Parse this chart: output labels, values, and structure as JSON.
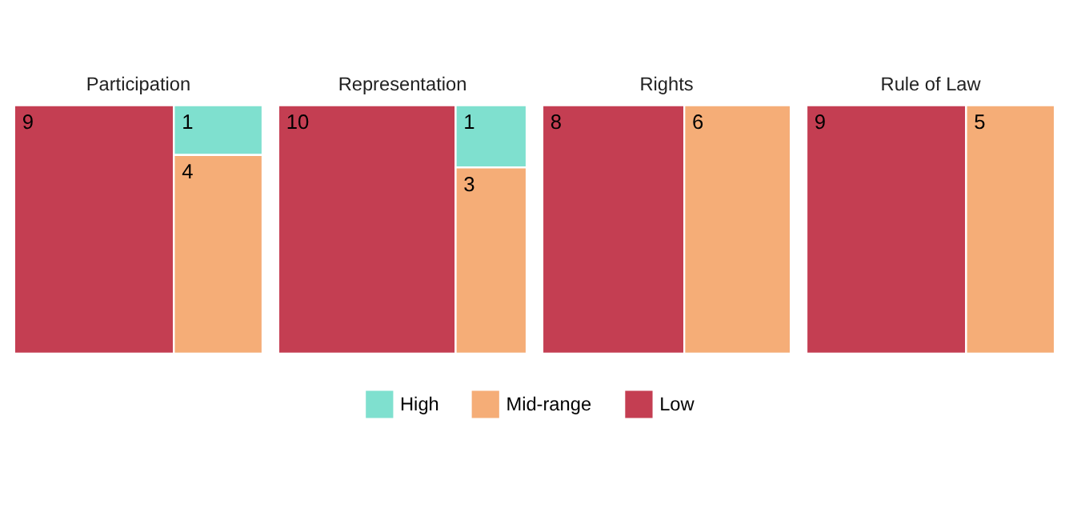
{
  "chart_data": {
    "type": "other",
    "categories": [
      "Participation",
      "Representation",
      "Rights",
      "Rule of Law"
    ],
    "data_labels": true,
    "legend": "bottom",
    "series": [
      {
        "name": "High",
        "color": "#7fe0cf",
        "values": [
          1,
          1,
          null,
          null
        ]
      },
      {
        "name": "Mid-range",
        "color": "#f5ad77",
        "values": [
          4,
          3,
          6,
          5
        ]
      },
      {
        "name": "Low",
        "color": "#c43e52",
        "values": [
          9,
          10,
          8,
          9
        ]
      }
    ]
  }
}
